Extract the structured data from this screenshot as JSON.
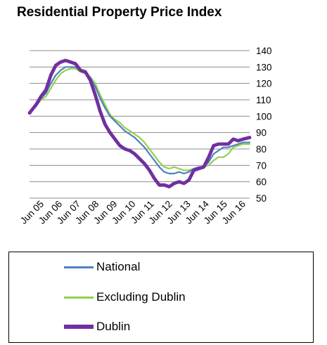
{
  "chart_data": {
    "type": "line",
    "title": "Residential Property Price Index",
    "x_tick_labels": [
      "Jun 05",
      "Jun 06",
      "Jun 07",
      "Jun 08",
      "Jun 09",
      "Jun 10",
      "Jun 11",
      "Jun 12",
      "Jun 13",
      "Jun 14",
      "Jun 15",
      "Jun 16"
    ],
    "x_range": [
      2005.42,
      2016.58
    ],
    "y_ticks": [
      50,
      60,
      70,
      80,
      90,
      100,
      110,
      120,
      130,
      140
    ],
    "ylim": [
      50,
      140
    ],
    "y_axis_side": "right",
    "grid": "horizontal",
    "legend_position": "bottom",
    "series": [
      {
        "name": "National",
        "color": "#4f81bd",
        "points": [
          [
            2005.42,
            102
          ],
          [
            2005.75,
            108
          ],
          [
            2006.0,
            111
          ],
          [
            2006.25,
            114
          ],
          [
            2006.5,
            120
          ],
          [
            2006.75,
            125
          ],
          [
            2007.0,
            128
          ],
          [
            2007.25,
            130
          ],
          [
            2007.5,
            130
          ],
          [
            2007.75,
            130
          ],
          [
            2008.0,
            128
          ],
          [
            2008.25,
            126
          ],
          [
            2008.5,
            123
          ],
          [
            2008.75,
            118
          ],
          [
            2009.0,
            111
          ],
          [
            2009.25,
            105
          ],
          [
            2009.5,
            100
          ],
          [
            2009.75,
            97
          ],
          [
            2010.0,
            94
          ],
          [
            2010.25,
            91
          ],
          [
            2010.5,
            89
          ],
          [
            2010.75,
            87
          ],
          [
            2011.0,
            84
          ],
          [
            2011.25,
            81
          ],
          [
            2011.5,
            77
          ],
          [
            2011.75,
            73
          ],
          [
            2012.0,
            69
          ],
          [
            2012.25,
            66
          ],
          [
            2012.5,
            65
          ],
          [
            2012.75,
            65
          ],
          [
            2013.0,
            66
          ],
          [
            2013.25,
            65
          ],
          [
            2013.5,
            66
          ],
          [
            2013.75,
            68
          ],
          [
            2014.0,
            69
          ],
          [
            2014.25,
            69
          ],
          [
            2014.5,
            72
          ],
          [
            2014.75,
            77
          ],
          [
            2015.0,
            79
          ],
          [
            2015.25,
            81
          ],
          [
            2015.5,
            81
          ],
          [
            2015.75,
            82
          ],
          [
            2016.0,
            83
          ],
          [
            2016.25,
            84
          ],
          [
            2016.58,
            84
          ]
        ]
      },
      {
        "name": "Excluding Dublin",
        "color": "#92d050",
        "points": [
          [
            2005.42,
            102
          ],
          [
            2005.75,
            106
          ],
          [
            2006.0,
            110
          ],
          [
            2006.25,
            112
          ],
          [
            2006.5,
            117
          ],
          [
            2006.75,
            122
          ],
          [
            2007.0,
            126
          ],
          [
            2007.25,
            128
          ],
          [
            2007.5,
            129
          ],
          [
            2007.75,
            129
          ],
          [
            2008.0,
            127
          ],
          [
            2008.25,
            126
          ],
          [
            2008.5,
            124
          ],
          [
            2008.75,
            120
          ],
          [
            2009.0,
            113
          ],
          [
            2009.25,
            107
          ],
          [
            2009.5,
            101
          ],
          [
            2009.75,
            98
          ],
          [
            2010.0,
            96
          ],
          [
            2010.25,
            93
          ],
          [
            2010.5,
            91
          ],
          [
            2010.75,
            89
          ],
          [
            2011.0,
            87
          ],
          [
            2011.25,
            84
          ],
          [
            2011.5,
            80
          ],
          [
            2011.75,
            76
          ],
          [
            2012.0,
            72
          ],
          [
            2012.25,
            69
          ],
          [
            2012.5,
            68
          ],
          [
            2012.75,
            69
          ],
          [
            2013.0,
            68
          ],
          [
            2013.25,
            67
          ],
          [
            2013.5,
            67
          ],
          [
            2013.75,
            68
          ],
          [
            2014.0,
            68
          ],
          [
            2014.25,
            69
          ],
          [
            2014.5,
            70
          ],
          [
            2014.75,
            73
          ],
          [
            2015.0,
            75
          ],
          [
            2015.25,
            75
          ],
          [
            2015.5,
            77
          ],
          [
            2015.75,
            81
          ],
          [
            2016.0,
            82
          ],
          [
            2016.25,
            83
          ],
          [
            2016.58,
            83
          ]
        ]
      },
      {
        "name": "Dublin",
        "color": "#7030a0",
        "points": [
          [
            2005.42,
            102
          ],
          [
            2005.75,
            107
          ],
          [
            2006.0,
            112
          ],
          [
            2006.25,
            116
          ],
          [
            2006.5,
            125
          ],
          [
            2006.75,
            131
          ],
          [
            2007.0,
            133
          ],
          [
            2007.25,
            134
          ],
          [
            2007.5,
            133
          ],
          [
            2007.75,
            132
          ],
          [
            2008.0,
            128
          ],
          [
            2008.25,
            127
          ],
          [
            2008.5,
            122
          ],
          [
            2008.75,
            113
          ],
          [
            2009.0,
            103
          ],
          [
            2009.25,
            95
          ],
          [
            2009.5,
            90
          ],
          [
            2009.75,
            86
          ],
          [
            2010.0,
            82
          ],
          [
            2010.25,
            80
          ],
          [
            2010.5,
            79
          ],
          [
            2010.75,
            77
          ],
          [
            2011.0,
            74
          ],
          [
            2011.25,
            71
          ],
          [
            2011.5,
            67
          ],
          [
            2011.75,
            62
          ],
          [
            2012.0,
            58
          ],
          [
            2012.25,
            58
          ],
          [
            2012.5,
            57
          ],
          [
            2012.75,
            59
          ],
          [
            2013.0,
            60
          ],
          [
            2013.25,
            59
          ],
          [
            2013.5,
            61
          ],
          [
            2013.75,
            67
          ],
          [
            2014.0,
            68
          ],
          [
            2014.25,
            69
          ],
          [
            2014.5,
            75
          ],
          [
            2014.75,
            82
          ],
          [
            2015.0,
            83
          ],
          [
            2015.25,
            83
          ],
          [
            2015.5,
            83
          ],
          [
            2015.75,
            86
          ],
          [
            2016.0,
            85
          ],
          [
            2016.25,
            86
          ],
          [
            2016.58,
            87
          ]
        ]
      }
    ]
  }
}
